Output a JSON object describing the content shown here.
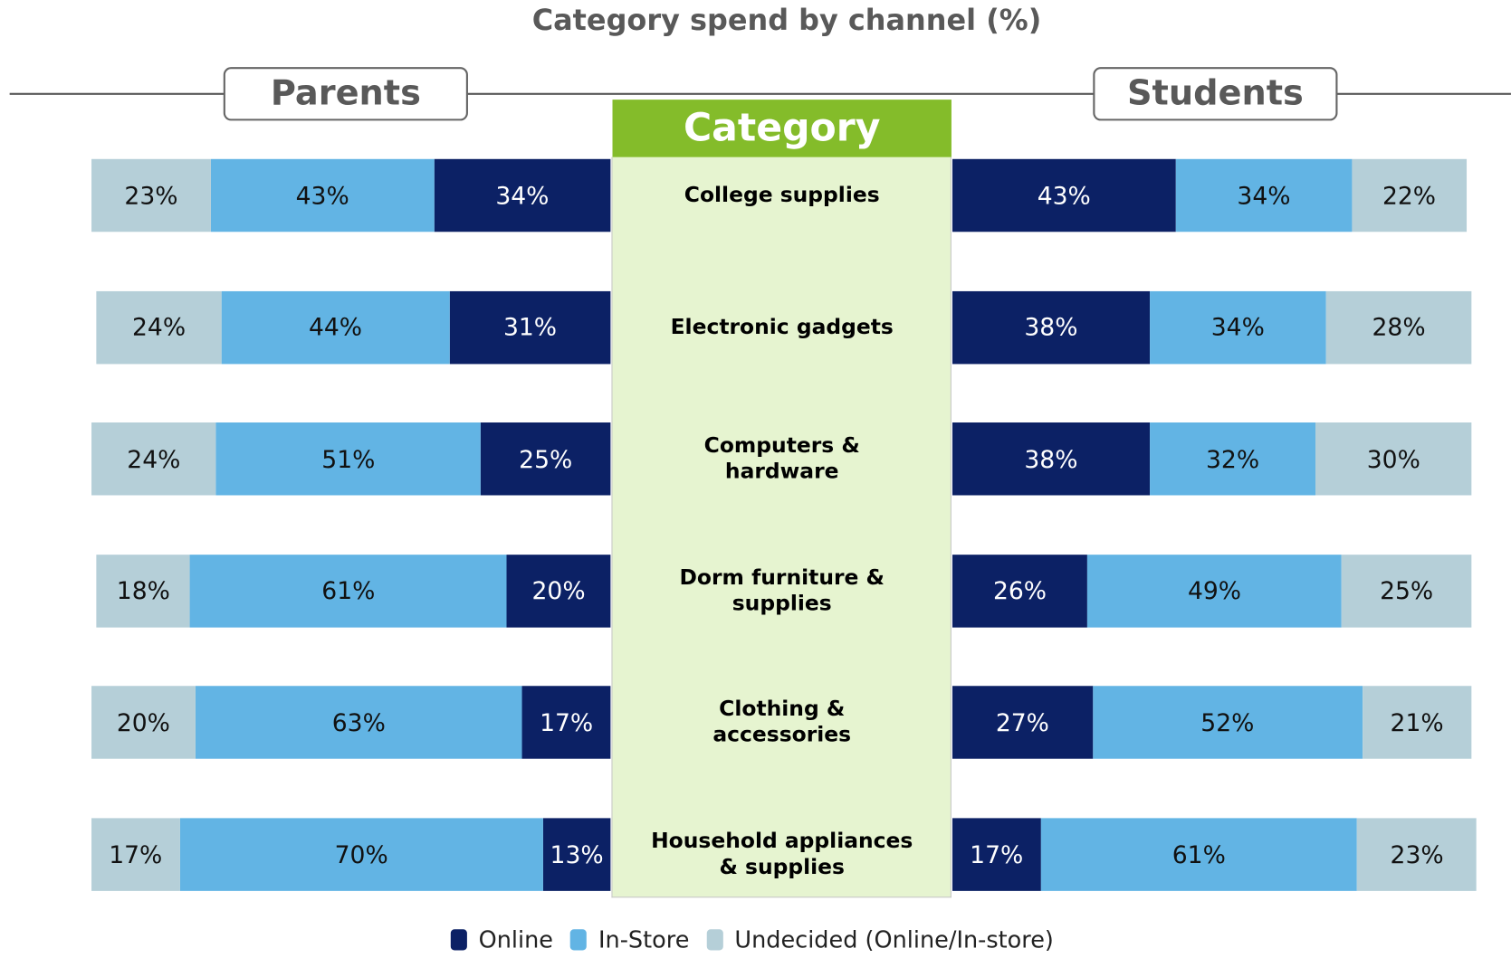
{
  "chart_data": {
    "type": "butterfly-stacked-bar",
    "title": "Category spend by channel (%)",
    "category_header": "Category",
    "categories": [
      "College supplies",
      "Electronic gadgets",
      "Computers &\nhardware",
      "Dorm furniture &\nsupplies",
      "Clothing &\naccessories",
      "Household appliances\n& supplies"
    ],
    "panels": [
      {
        "name": "Parents",
        "side": "left",
        "series": [
          {
            "name": "Online",
            "color": "#0c2165",
            "values": [
              34,
              31,
              25,
              20,
              17,
              13
            ],
            "value_labels": [
              "34%",
              "31%",
              "25%",
              "20%",
              "17%",
              "13%"
            ]
          },
          {
            "name": "In-Store",
            "color": "#62b4e4",
            "values": [
              43,
              44,
              51,
              61,
              63,
              70
            ],
            "value_labels": [
              "43%",
              "44%",
              "51%",
              "61%",
              "63%",
              "70%"
            ]
          },
          {
            "name": "Undecided (Online/In-store)",
            "color": "#b5cfd8",
            "values": [
              23,
              24,
              24,
              18,
              20,
              17
            ],
            "value_labels": [
              "23%",
              "24%",
              "24%",
              "18%",
              "20%",
              "17%"
            ]
          }
        ]
      },
      {
        "name": "Students",
        "side": "right",
        "series": [
          {
            "name": "Online",
            "color": "#0c2165",
            "values": [
              43,
              38,
              38,
              26,
              27,
              17
            ],
            "value_labels": [
              "43%",
              "38%",
              "38%",
              "26%",
              "27%",
              "17%"
            ]
          },
          {
            "name": "In-Store",
            "color": "#62b4e4",
            "values": [
              34,
              34,
              32,
              49,
              52,
              61
            ],
            "value_labels": [
              "34%",
              "34%",
              "32%",
              "49%",
              "52%",
              "61%"
            ]
          },
          {
            "name": "Undecided (Online/In-store)",
            "color": "#b5cfd8",
            "values": [
              22,
              28,
              30,
              25,
              21,
              23
            ],
            "value_labels": [
              "22%",
              "28%",
              "30%",
              "25%",
              "21%",
              "23%"
            ]
          }
        ]
      }
    ]
  }
}
